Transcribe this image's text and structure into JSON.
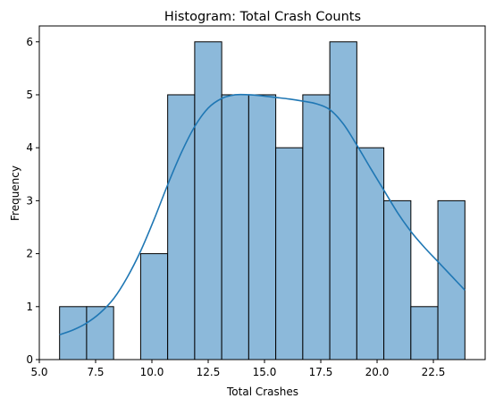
{
  "chart_data": {
    "type": "bar",
    "title": "Histogram: Total Crash Counts",
    "xlabel": "Total Crashes",
    "ylabel": "Frequency",
    "xlim": [
      5.0,
      24.8
    ],
    "ylim": [
      0,
      6.3
    ],
    "xticks": [
      5.0,
      7.5,
      10.0,
      12.5,
      15.0,
      17.5,
      20.0,
      22.5
    ],
    "xtick_labels": [
      "5.0",
      "7.5",
      "10.0",
      "12.5",
      "15.0",
      "17.5",
      "20.0",
      "22.5"
    ],
    "yticks": [
      0,
      1,
      2,
      3,
      4,
      5,
      6
    ],
    "ytick_labels": [
      "0",
      "1",
      "2",
      "3",
      "4",
      "5",
      "6"
    ],
    "bins": {
      "edges": [
        5.9,
        7.1,
        8.3,
        9.5,
        10.7,
        11.9,
        13.1,
        14.3,
        15.5,
        16.7,
        17.9,
        19.1,
        20.3,
        21.5,
        22.7,
        23.9
      ],
      "counts": [
        1,
        1,
        0,
        2,
        5,
        6,
        5,
        5,
        4,
        5,
        6,
        4,
        3,
        1,
        3
      ]
    },
    "kde": {
      "x": [
        5.9,
        6.5,
        7.1,
        7.7,
        8.3,
        8.9,
        9.5,
        10.1,
        10.7,
        11.3,
        11.9,
        12.5,
        13.1,
        13.7,
        14.3,
        14.9,
        15.5,
        16.1,
        16.7,
        17.3,
        17.9,
        18.5,
        19.1,
        19.7,
        20.3,
        20.9,
        21.5,
        22.1,
        22.7,
        23.3,
        23.9
      ],
      "y": [
        0.47,
        0.56,
        0.69,
        0.88,
        1.15,
        1.55,
        2.05,
        2.65,
        3.3,
        3.9,
        4.4,
        4.75,
        4.93,
        5.0,
        5.0,
        4.98,
        4.95,
        4.92,
        4.88,
        4.83,
        4.72,
        4.45,
        4.05,
        3.62,
        3.2,
        2.78,
        2.42,
        2.12,
        1.85,
        1.58,
        1.31
      ]
    },
    "colors": {
      "bar_fill": "#8cb9da",
      "bar_edge": "#000000",
      "kde_line": "#1f77b4"
    },
    "grid": false,
    "legend": "none"
  }
}
